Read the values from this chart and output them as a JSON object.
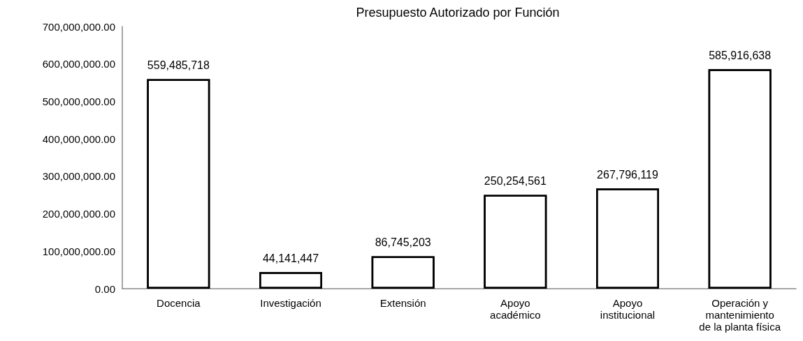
{
  "chart_data": {
    "type": "bar",
    "title": "Presupuesto Autorizado por Función",
    "categories": [
      "Docencia",
      "Investigación",
      "Extensión",
      "Apoyo\nacadémico",
      "Apoyo\ninstitucional",
      "Operación y\nmantenimiento\nde la planta física"
    ],
    "values": [
      559485718,
      44141447,
      86745203,
      250254561,
      267796119,
      585916638
    ],
    "value_labels": [
      "559,485,718",
      "44,141,447",
      "86,745,203",
      "250,254,561",
      "267,796,119",
      "585,916,638"
    ],
    "color": "#ffffff",
    "ylim": [
      0,
      700000000
    ],
    "yticks": [
      {
        "value": 0,
        "label": "0.00"
      },
      {
        "value": 100000000,
        "label": "100,000,000.00"
      },
      {
        "value": 200000000,
        "label": "200,000,000.00"
      },
      {
        "value": 300000000,
        "label": "300,000,000.00"
      },
      {
        "value": 400000000,
        "label": "400,000,000.00"
      },
      {
        "value": 500000000,
        "label": "500,000,000.00"
      },
      {
        "value": 600000000,
        "label": "600,000,000.00"
      },
      {
        "value": 700000000,
        "label": "700,000,000.00"
      }
    ],
    "grid": false
  }
}
